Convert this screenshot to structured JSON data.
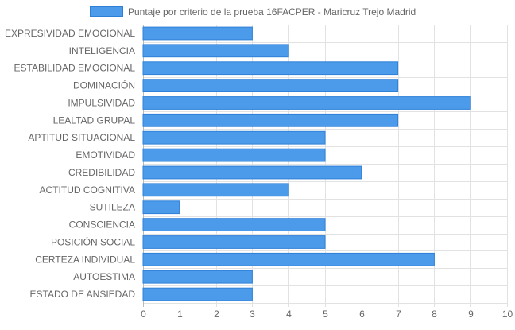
{
  "chart_data": {
    "type": "bar",
    "orientation": "horizontal",
    "categories": [
      "EXPRESIVIDAD EMOCIONAL",
      "INTELIGENCIA",
      "ESTABILIDAD EMOCIONAL",
      "DOMINACIÓN",
      "IMPULSIVIDAD",
      "LEALTAD GRUPAL",
      "APTITUD SITUACIONAL",
      "EMOTIVIDAD",
      "CREDIBILIDAD",
      "ACTITUD COGNITIVA",
      "SUTILEZA",
      "CONSCIENCIA",
      "POSICIÓN SOCIAL",
      "CERTEZA INDIVIDUAL",
      "AUTOESTIMA",
      "ESTADO DE ANSIEDAD"
    ],
    "series": [
      {
        "name": "Puntaje por criterio de la prueba 16FACPER - Maricruz Trejo Madrid",
        "values": [
          3,
          4,
          7,
          7,
          9,
          7,
          5,
          5,
          6,
          4,
          1,
          5,
          5,
          8,
          3,
          3
        ],
        "color": "#4c9bea"
      }
    ],
    "xlim": [
      0,
      10
    ],
    "xticks": [
      "0",
      "1",
      "2",
      "3",
      "4",
      "5",
      "6",
      "7",
      "8",
      "9",
      "10"
    ],
    "title": "",
    "xlabel": "",
    "ylabel": "",
    "grid": true,
    "legend_position": "top-center"
  }
}
